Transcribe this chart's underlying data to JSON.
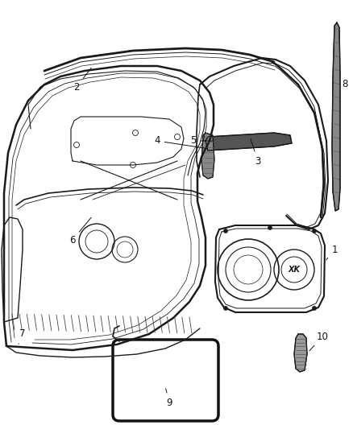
{
  "background_color": "#ffffff",
  "fig_width": 4.38,
  "fig_height": 5.33,
  "dpi": 100,
  "line_color": "#1a1a1a",
  "label_fontsize": 8.5,
  "label_color": "#111111"
}
